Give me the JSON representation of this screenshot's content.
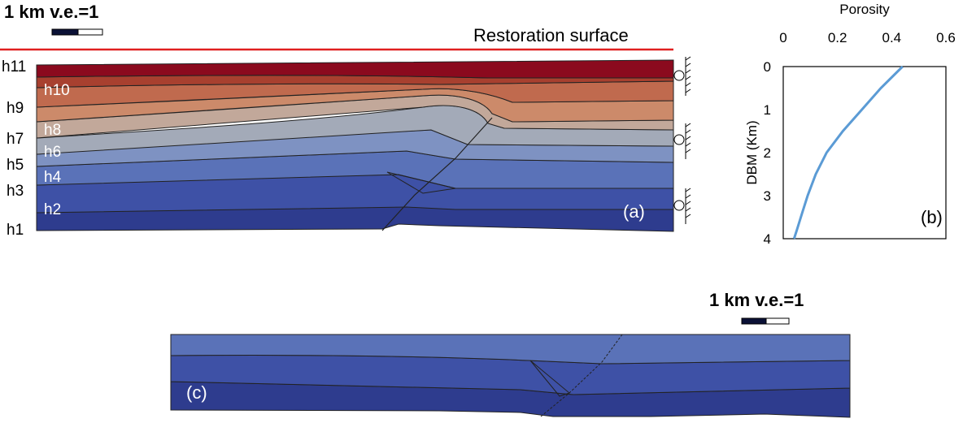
{
  "scale_bar_top": "1 km v.e.=1",
  "scale_bar_bottom": "1 km v.e.=1",
  "restoration_label": "Restoration surface",
  "horizon_labels_outside": [
    "h11",
    "h9",
    "h7",
    "h5",
    "h3",
    "h1"
  ],
  "horizon_labels_inside": [
    "h10",
    "h8",
    "h6",
    "h4",
    "h2"
  ],
  "panel_a": "(a)",
  "panel_b": "(b)",
  "panel_c": "(c)",
  "colors": {
    "restoration_line": "#e02020",
    "layer_colors": [
      "#2e3c8e",
      "#3e51a6",
      "#5a72b8",
      "#7e92c2",
      "#a3aab8",
      "#c2a89a",
      "#cc8a6a",
      "#c06a4e",
      "#a8402f",
      "#8b0a1e"
    ],
    "porosity_curve": "#5b9bd5"
  },
  "chart_data": {
    "type": "line",
    "title": "Porosity",
    "xlabel": "Porosity",
    "ylabel": "DBM (Km)",
    "xlim": [
      0,
      0.6
    ],
    "ylim": [
      0,
      4
    ],
    "y_inverted": true,
    "x_ticks": [
      "0",
      "0.2",
      "0.4",
      "0.6"
    ],
    "y_ticks": [
      "0",
      "1",
      "2",
      "3",
      "4"
    ],
    "series": [
      {
        "x": [
          0.44,
          0.36,
          0.29,
          0.22,
          0.16,
          0.12,
          0.09,
          0.07,
          0.05,
          0.04
        ],
        "y": [
          0.0,
          0.5,
          1.0,
          1.5,
          2.0,
          2.5,
          3.0,
          3.4,
          3.8,
          4.0
        ]
      }
    ]
  }
}
